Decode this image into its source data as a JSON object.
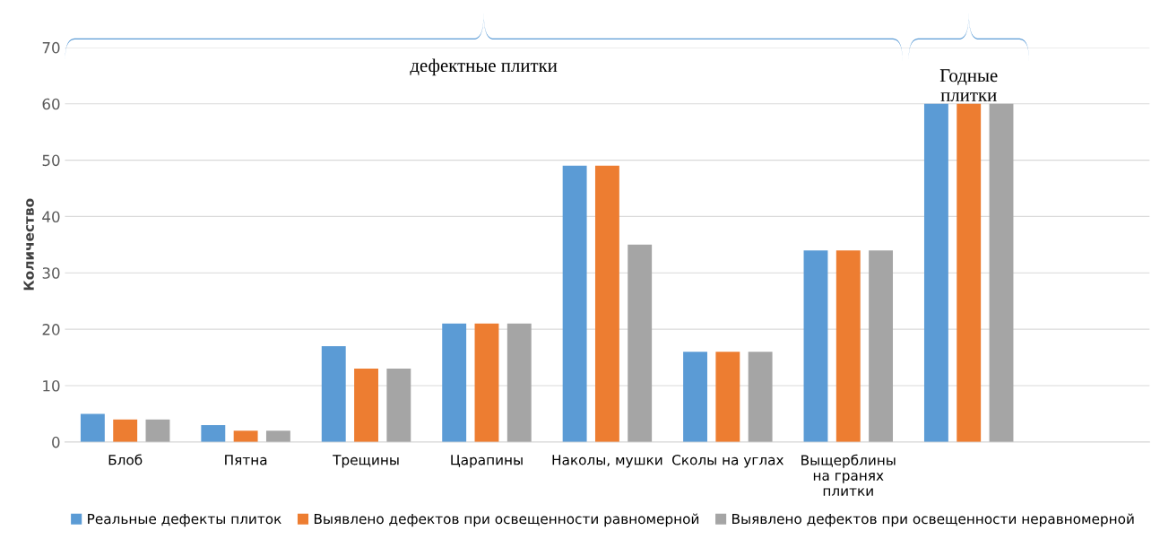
{
  "chart_data": {
    "type": "bar",
    "ylabel": "Количество",
    "categories": [
      "Блоб",
      "Пятна",
      "Трещины",
      "Царапины",
      "Наколы, мушки",
      "Сколы на углах",
      "Выщерблины\nна гранях\nплитки",
      null,
      null
    ],
    "series": [
      {
        "name": "Реальные дефекты плиток",
        "color": "#5b9bd5",
        "values": [
          5,
          3,
          17,
          21,
          49,
          16,
          34,
          60,
          null
        ]
      },
      {
        "name": "Выявлено дефектов при освещенности равномерной",
        "color": "#ed7d31",
        "values": [
          4,
          2,
          13,
          21,
          49,
          16,
          34,
          60,
          null
        ]
      },
      {
        "name": "Выявлено дефектов при освещенности неравномерной",
        "color": "#a5a5a5",
        "values": [
          4,
          2,
          13,
          21,
          35,
          16,
          34,
          60,
          null
        ]
      }
    ],
    "ylim": [
      0,
      70
    ],
    "yticks": [
      0,
      10,
      20,
      30,
      40,
      50,
      60,
      70
    ],
    "grid": "y",
    "legend": "bottom",
    "annotations": [
      "дефектные плитки",
      "Годные\nплитки"
    ]
  }
}
